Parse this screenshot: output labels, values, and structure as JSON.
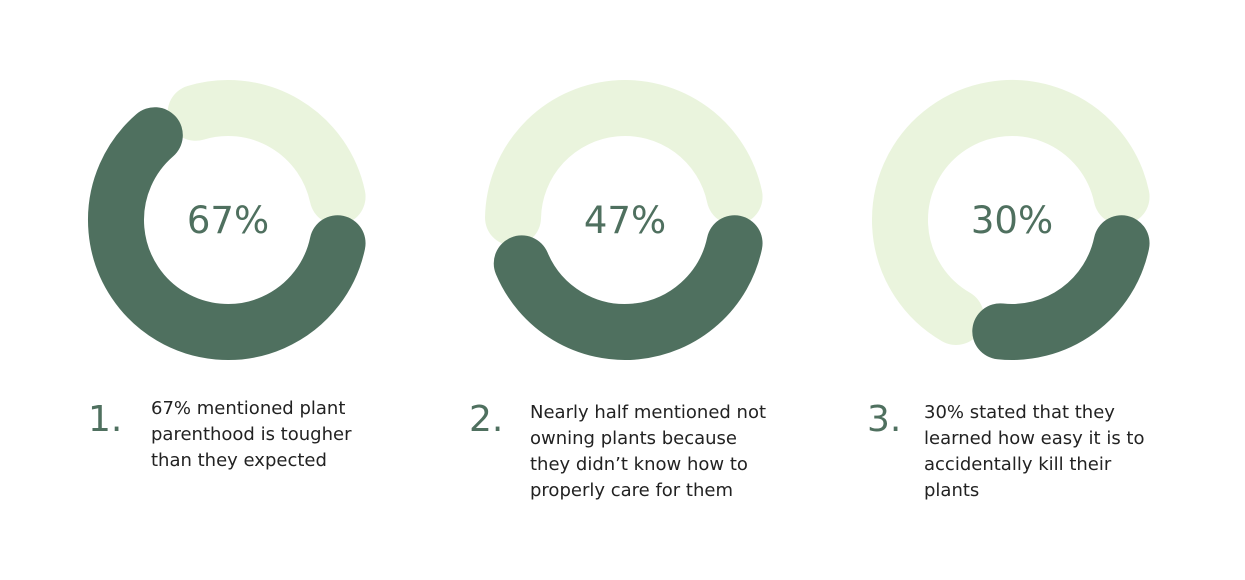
{
  "colors": {
    "filled": "#4f705f",
    "remaining": "#eaf4dd",
    "text": "#222222"
  },
  "chart_data": [
    {
      "type": "pie",
      "variant": "donut",
      "values": [
        67,
        33
      ],
      "label": "67%"
    },
    {
      "type": "pie",
      "variant": "donut",
      "values": [
        47,
        53
      ],
      "label": "47%"
    },
    {
      "type": "pie",
      "variant": "donut",
      "values": [
        30,
        70
      ],
      "label": "30%"
    }
  ],
  "stats": [
    {
      "number": "1.",
      "text": "67% mentioned plant parenthood is tougher than they expected"
    },
    {
      "number": "2.",
      "text": "Nearly half mentioned not owning plants because they didn’t know how to properly care for them"
    },
    {
      "number": "3.",
      "text": "30% stated that they learned how easy it is to accidentally kill their plants"
    }
  ]
}
